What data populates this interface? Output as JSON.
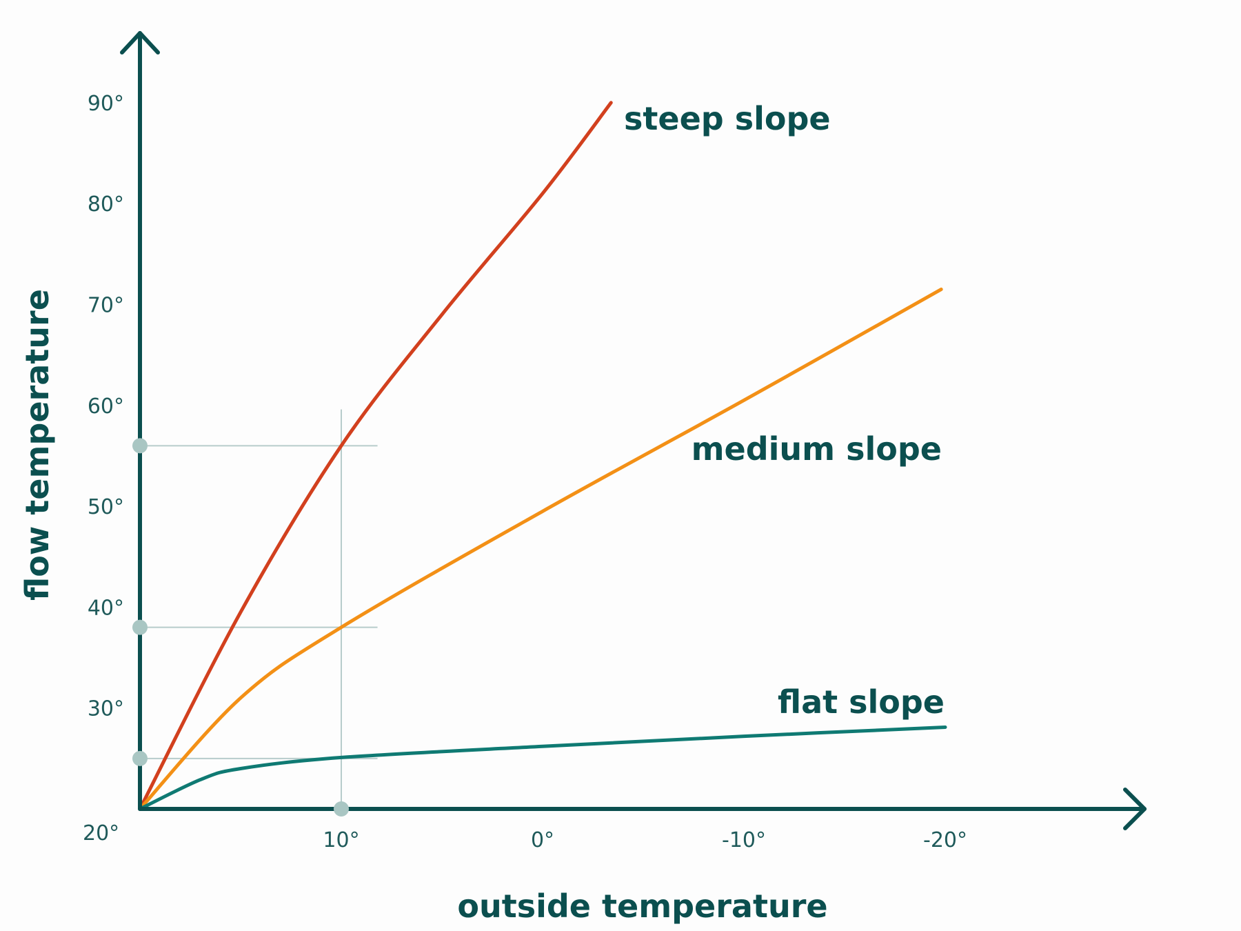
{
  "chart_data": {
    "type": "line",
    "title": "",
    "xlabel": "outside temperature",
    "ylabel": "flow temperature",
    "x_reversed": true,
    "xlim": [
      20,
      -20
    ],
    "ylim": [
      20,
      90
    ],
    "x_ticks": [
      "20°",
      "10°",
      "0°",
      "-10°",
      "-20°"
    ],
    "x_tick_values": [
      20,
      10,
      0,
      -10,
      -20
    ],
    "y_ticks": [
      "30°",
      "40°",
      "50°",
      "60°",
      "70°",
      "80°",
      "90°"
    ],
    "y_tick_values": [
      30,
      40,
      50,
      60,
      70,
      80,
      90
    ],
    "grid": false,
    "series": [
      {
        "name": "steep slope",
        "color": "#d2401e",
        "x": [
          20,
          15,
          10,
          5,
          0,
          -3.4
        ],
        "y": [
          20,
          39.5,
          56,
          69,
          81,
          90
        ]
      },
      {
        "name": "medium slope",
        "color": "#f39016",
        "x": [
          20,
          15,
          10,
          0,
          -10,
          -19.8
        ],
        "y": [
          20,
          31,
          38,
          49.5,
          60.5,
          71.5
        ]
      },
      {
        "name": "flat slope",
        "color": "#0f7a73",
        "x": [
          20,
          17,
          15,
          10,
          0,
          -10,
          -20
        ],
        "y": [
          20,
          22.9,
          24,
          25.1,
          26.2,
          27.2,
          28.1
        ]
      }
    ],
    "annotations": {
      "reference_x": 10,
      "reference_y": [
        56,
        38,
        25
      ],
      "guide_color": "#b7cccb",
      "marker_color": "#a9c6c3"
    },
    "axis_color": "#0b4f4f"
  }
}
